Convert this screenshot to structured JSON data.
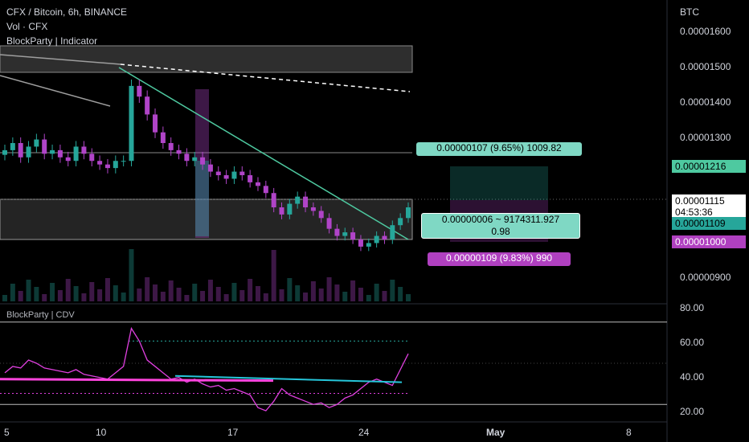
{
  "legend": {
    "title": "CFX / Bitcoin, 6h, BINANCE",
    "vol": "Vol · CFX",
    "indicator": "BlockParty | Indicator",
    "sub_indicator": "BlockParty | CDV"
  },
  "price_axis": {
    "currency": "BTC",
    "ticks": [
      "0.00001600",
      "0.00001500",
      "0.00001400",
      "0.00001300",
      "0.00000900"
    ],
    "labels": [
      {
        "text": "0.00001216",
        "color": "#4ec9a0"
      },
      {
        "text": "0.00001115",
        "color": "#000000"
      },
      {
        "text": "04:53:36",
        "color": "#000000"
      },
      {
        "text": "0.00001109",
        "color": "#26a69a"
      },
      {
        "text": "0.00001000",
        "color": "#b040c0"
      }
    ]
  },
  "cdv_axis": {
    "ticks": [
      "80.00",
      "60.00",
      "40.00",
      "20.00"
    ]
  },
  "time_axis": {
    "labels": [
      {
        "text": "5",
        "bold": false
      },
      {
        "text": "10",
        "bold": false
      },
      {
        "text": "17",
        "bold": false
      },
      {
        "text": "24",
        "bold": false
      },
      {
        "text": "May",
        "bold": true
      },
      {
        "text": "8",
        "bold": false
      }
    ]
  },
  "boxes": {
    "target": "0.00000107 (9.65%) 1009.82",
    "ratio_line1": "0.00000006 ~ 9174311.927",
    "ratio_line2": "0.98",
    "stop": "0.00000109 (9.83%) 990"
  },
  "colors": {
    "up": "#26a69a",
    "down": "#b044c8",
    "trend": "#4ec9a0",
    "cdv": "#e040e0",
    "cdv_line": "#26c6da"
  },
  "chart_data": {
    "type": "candlestick",
    "title": "CFX / Bitcoin, 6h, BINANCE",
    "ylim": [
      8.7e-06,
      1.68e-05
    ],
    "close_series": [
      1.3e-05,
      1.32e-05,
      1.28e-05,
      1.31e-05,
      1.33e-05,
      1.29e-05,
      1.3e-05,
      1.28e-05,
      1.27e-05,
      1.31e-05,
      1.29e-05,
      1.27e-05,
      1.26e-05,
      1.25e-05,
      1.27e-05,
      1.27e-05,
      1.48e-05,
      1.45e-05,
      1.4e-05,
      1.35e-05,
      1.32e-05,
      1.3e-05,
      1.29e-05,
      1.27e-05,
      1.28e-05,
      1.26e-05,
      1.24e-05,
      1.23e-05,
      1.22e-05,
      1.24e-05,
      1.23e-05,
      1.21e-05,
      1.2e-05,
      1.18e-05,
      1.14e-05,
      1.12e-05,
      1.15e-05,
      1.17e-05,
      1.14e-05,
      1.13e-05,
      1.11e-05,
      1.08e-05,
      1.06e-05,
      1.07e-05,
      1.05e-05,
      1.03e-05,
      1.04e-05,
      1.06e-05,
      1.05e-05,
      1.09e-05,
      1.11e-05,
      1.14e-05
    ],
    "levels": {
      "last": 1.115e-05,
      "target": 1.216e-05,
      "entry": 1.109e-05,
      "stop": 1e-05
    },
    "cdv_ylim": [
      15,
      85
    ]
  }
}
